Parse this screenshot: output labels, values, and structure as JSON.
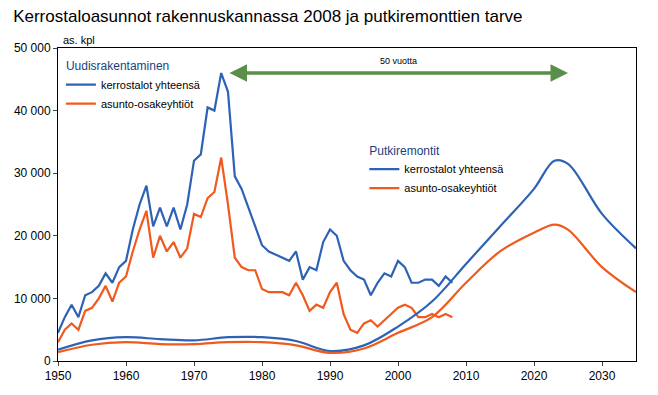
{
  "chart_data": {
    "type": "line",
    "title": "Kerrostaloasunnot rakennuskannassa 2008 ja putkiremonttien tarve",
    "ylabel": "as. kpl",
    "xlim": [
      1950,
      2035
    ],
    "xticks": [
      1950,
      1960,
      1970,
      1980,
      1990,
      2000,
      2010,
      2020,
      2030
    ],
    "ylim": [
      0,
      50000
    ],
    "yticks": [
      0,
      {
        "value": 10000,
        "label": "10 000"
      },
      {
        "value": 20000,
        "label": "20 000"
      },
      {
        "value": 30000,
        "label": "30 000"
      },
      {
        "value": 40000,
        "label": "40 000"
      },
      {
        "value": 50000,
        "label": "50 000"
      }
    ],
    "grid": false,
    "legend": "upper left",
    "annotations": [
      {
        "text": "50 vuotta",
        "x": 2000,
        "y": 46000,
        "x_from": 1975,
        "x_to": 2025
      }
    ],
    "groups": [
      {
        "title": "Uudisrakentaminen",
        "series": [
          {
            "name": "kerrostalot yhteensä",
            "color": "#2d62b5",
            "x": [
              1950,
              1951,
              1952,
              1953,
              1954,
              1955,
              1956,
              1957,
              1958,
              1959,
              1960,
              1961,
              1962,
              1963,
              1964,
              1965,
              1966,
              1967,
              1968,
              1969,
              1970,
              1971,
              1972,
              1973,
              1974,
              1975,
              1976,
              1977,
              1978,
              1979,
              1980,
              1981,
              1982,
              1983,
              1984,
              1985,
              1986,
              1987,
              1988,
              1989,
              1990,
              1991,
              1992,
              1993,
              1994,
              1995,
              1996,
              1997,
              1998,
              1999,
              2000,
              2001,
              2002,
              2003,
              2004,
              2005,
              2006,
              2007,
              2008
            ],
            "values": [
              4500,
              7000,
              9000,
              7000,
              10500,
              11000,
              12000,
              14000,
              12500,
              15000,
              16000,
              21000,
              25000,
              28000,
              21500,
              24500,
              21500,
              24500,
              21000,
              25000,
              32000,
              33000,
              40500,
              40000,
              46000,
              43000,
              29500,
              27500,
              24500,
              21500,
              18500,
              17500,
              17000,
              16500,
              16000,
              17500,
              13000,
              15000,
              14500,
              19000,
              21000,
              20000,
              16000,
              14500,
              13500,
              13000,
              10500,
              12500,
              14000,
              13500,
              16000,
              15000,
              12500,
              12500,
              13000,
              13000,
              12000,
              13500,
              12500
            ]
          },
          {
            "name": "asunto-osakeyhtiöt",
            "color": "#f05a1e",
            "x": [
              1950,
              1951,
              1952,
              1953,
              1954,
              1955,
              1956,
              1957,
              1958,
              1959,
              1960,
              1961,
              1962,
              1963,
              1964,
              1965,
              1966,
              1967,
              1968,
              1969,
              1970,
              1971,
              1972,
              1973,
              1974,
              1975,
              1976,
              1977,
              1978,
              1979,
              1980,
              1981,
              1982,
              1983,
              1984,
              1985,
              1986,
              1987,
              1988,
              1989,
              1990,
              1991,
              1992,
              1993,
              1994,
              1995,
              1996,
              1997,
              1998,
              1999,
              2000,
              2001,
              2002,
              2003,
              2004,
              2005,
              2006,
              2007,
              2008
            ],
            "values": [
              3000,
              5000,
              6000,
              5000,
              8000,
              8500,
              10000,
              12000,
              9500,
              12500,
              13500,
              17500,
              21000,
              24000,
              16500,
              20000,
              17500,
              19000,
              16500,
              18000,
              23500,
              23000,
              26000,
              27000,
              32500,
              25000,
              16500,
              15000,
              14500,
              14500,
              11500,
              11000,
              11000,
              11000,
              10500,
              12500,
              10500,
              8000,
              9000,
              8500,
              11000,
              12500,
              7500,
              5000,
              4500,
              6000,
              6500,
              5500,
              6500,
              7500,
              8500,
              9000,
              8500,
              7000,
              7000,
              7500,
              7000,
              7500,
              7000
            ]
          }
        ]
      },
      {
        "title": "Putkiremontit",
        "series": [
          {
            "name": "kerrostalot yhteensä",
            "color": "#2d62b5",
            "x": [
              1950,
              1955,
              1960,
              1965,
              1970,
              1975,
              1980,
              1985,
              1990,
              1995,
              2000,
              2005,
              2010,
              2015,
              2020,
              2023,
              2025,
              2030,
              2035
            ],
            "values": [
              1800,
              3300,
              3800,
              3500,
              3300,
              3800,
              3800,
              3200,
              1600,
              2500,
              5500,
              9500,
              15500,
              21500,
              27500,
              32000,
              31500,
              23500,
              18000
            ]
          },
          {
            "name": "asunto-osakeyhtiöt",
            "color": "#f05a1e",
            "x": [
              1950,
              1955,
              1960,
              1965,
              1970,
              1975,
              1980,
              1985,
              1990,
              1995,
              2000,
              2005,
              2010,
              2015,
              2020,
              2023,
              2025,
              2030,
              2035
            ],
            "values": [
              1400,
              2600,
              3000,
              2700,
              2700,
              3000,
              3000,
              2500,
              1300,
              2000,
              4500,
              7000,
              12500,
              17500,
              20500,
              21800,
              21000,
              15000,
              11000
            ]
          }
        ]
      }
    ]
  }
}
